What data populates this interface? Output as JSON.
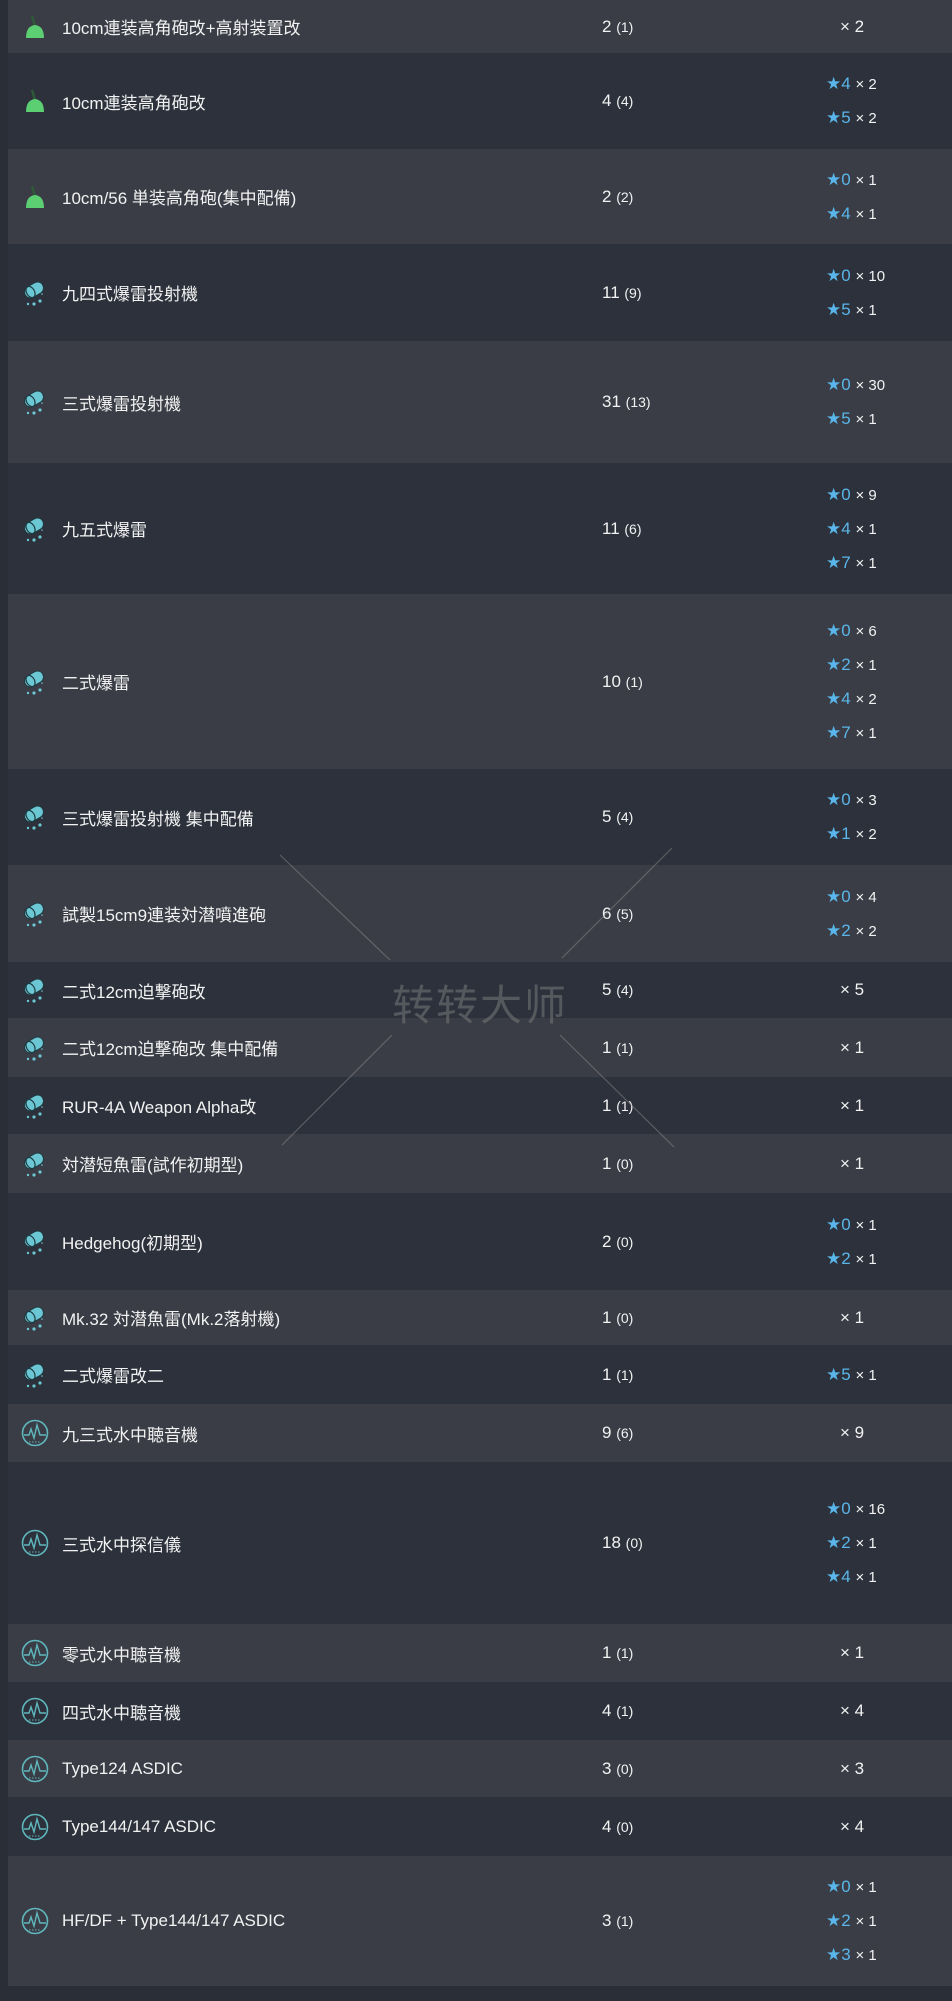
{
  "colors": {
    "star": "#5ab6ea",
    "row_light": "#3a3d46",
    "row_dark": "#2c313b",
    "aa_gun_icon": "#5ccf73",
    "asw_icon": "#6cc7d4"
  },
  "watermark": "转转大师",
  "items": [
    {
      "icon": "aa-gun-icon",
      "name": "10cm連装高角砲改+高射装置改",
      "count": "2",
      "sub": "(1)",
      "plain": "× 2",
      "stars": []
    },
    {
      "icon": "aa-gun-icon",
      "name": "10cm連装高角砲改",
      "count": "4",
      "sub": "(4)",
      "stars": [
        {
          "lv": "★4",
          "n": "× 2"
        },
        {
          "lv": "★5",
          "n": "× 2"
        }
      ]
    },
    {
      "icon": "aa-gun-icon",
      "name": "10cm/56 単装高角砲(集中配備)",
      "count": "2",
      "sub": "(2)",
      "stars": [
        {
          "lv": "★0",
          "n": "× 1"
        },
        {
          "lv": "★4",
          "n": "× 1"
        }
      ]
    },
    {
      "icon": "depth-charge-icon",
      "name": "九四式爆雷投射機",
      "count": "11",
      "sub": "(9)",
      "stars": [
        {
          "lv": "★0",
          "n": "× 10"
        },
        {
          "lv": "★5",
          "n": "× 1"
        }
      ]
    },
    {
      "icon": "depth-charge-icon",
      "name": "三式爆雷投射機",
      "count": "31",
      "sub": "(13)",
      "stars": [
        {
          "lv": "★0",
          "n": "× 30"
        },
        {
          "lv": "★5",
          "n": "× 1"
        }
      ]
    },
    {
      "icon": "depth-charge-icon",
      "name": "九五式爆雷",
      "count": "11",
      "sub": "(6)",
      "stars": [
        {
          "lv": "★0",
          "n": "× 9"
        },
        {
          "lv": "★4",
          "n": "× 1"
        },
        {
          "lv": "★7",
          "n": "× 1"
        }
      ]
    },
    {
      "icon": "depth-charge-icon",
      "name": "二式爆雷",
      "count": "10",
      "sub": "(1)",
      "stars": [
        {
          "lv": "★0",
          "n": "× 6"
        },
        {
          "lv": "★2",
          "n": "× 1"
        },
        {
          "lv": "★4",
          "n": "× 2"
        },
        {
          "lv": "★7",
          "n": "× 1"
        }
      ]
    },
    {
      "icon": "depth-charge-icon",
      "name": "三式爆雷投射機 集中配備",
      "count": "5",
      "sub": "(4)",
      "stars": [
        {
          "lv": "★0",
          "n": "× 3"
        },
        {
          "lv": "★1",
          "n": "× 2"
        }
      ]
    },
    {
      "icon": "depth-charge-icon",
      "name": "試製15cm9連装対潜噴進砲",
      "count": "6",
      "sub": "(5)",
      "stars": [
        {
          "lv": "★0",
          "n": "× 4"
        },
        {
          "lv": "★2",
          "n": "× 2"
        }
      ]
    },
    {
      "icon": "depth-charge-icon",
      "name": "二式12cm迫撃砲改",
      "count": "5",
      "sub": "(4)",
      "plain": "× 5",
      "stars": []
    },
    {
      "icon": "depth-charge-icon",
      "name": "二式12cm迫撃砲改 集中配備",
      "count": "1",
      "sub": "(1)",
      "plain": "× 1",
      "stars": []
    },
    {
      "icon": "depth-charge-icon",
      "name": "RUR-4A Weapon Alpha改",
      "count": "1",
      "sub": "(1)",
      "plain": "× 1",
      "stars": []
    },
    {
      "icon": "depth-charge-icon",
      "name": "対潜短魚雷(試作初期型)",
      "count": "1",
      "sub": "(0)",
      "plain": "× 1",
      "stars": []
    },
    {
      "icon": "depth-charge-icon",
      "name": "Hedgehog(初期型)",
      "count": "2",
      "sub": "(0)",
      "stars": [
        {
          "lv": "★0",
          "n": "× 1"
        },
        {
          "lv": "★2",
          "n": "× 1"
        }
      ]
    },
    {
      "icon": "depth-charge-icon",
      "name": "Mk.32 対潜魚雷(Mk.2落射機)",
      "count": "1",
      "sub": "(0)",
      "plain": "× 1",
      "stars": []
    },
    {
      "icon": "depth-charge-icon",
      "name": "二式爆雷改二",
      "count": "1",
      "sub": "(1)",
      "stars": [
        {
          "lv": "★5",
          "n": "× 1"
        }
      ]
    },
    {
      "icon": "sonar-icon",
      "name": "九三式水中聴音機",
      "count": "9",
      "sub": "(6)",
      "plain": "× 9",
      "stars": []
    },
    {
      "icon": "sonar-icon",
      "name": "三式水中探信儀",
      "count": "18",
      "sub": "(0)",
      "stars": [
        {
          "lv": "★0",
          "n": "× 16"
        },
        {
          "lv": "★2",
          "n": "× 1"
        },
        {
          "lv": "★4",
          "n": "× 1"
        }
      ]
    },
    {
      "icon": "sonar-icon",
      "name": "零式水中聴音機",
      "count": "1",
      "sub": "(1)",
      "plain": "× 1",
      "stars": []
    },
    {
      "icon": "sonar-icon",
      "name": "四式水中聴音機",
      "count": "4",
      "sub": "(1)",
      "plain": "× 4",
      "stars": []
    },
    {
      "icon": "sonar-icon",
      "name": "Type124 ASDIC",
      "count": "3",
      "sub": "(0)",
      "plain": "× 3",
      "stars": []
    },
    {
      "icon": "sonar-icon",
      "name": "Type144/147 ASDIC",
      "count": "4",
      "sub": "(0)",
      "plain": "× 4",
      "stars": []
    },
    {
      "icon": "sonar-icon",
      "name": "HF/DF + Type144/147 ASDIC",
      "count": "3",
      "sub": "(1)",
      "stars": [
        {
          "lv": "★0",
          "n": "× 1"
        },
        {
          "lv": "★2",
          "n": "× 1"
        },
        {
          "lv": "★3",
          "n": "× 1"
        }
      ]
    }
  ]
}
